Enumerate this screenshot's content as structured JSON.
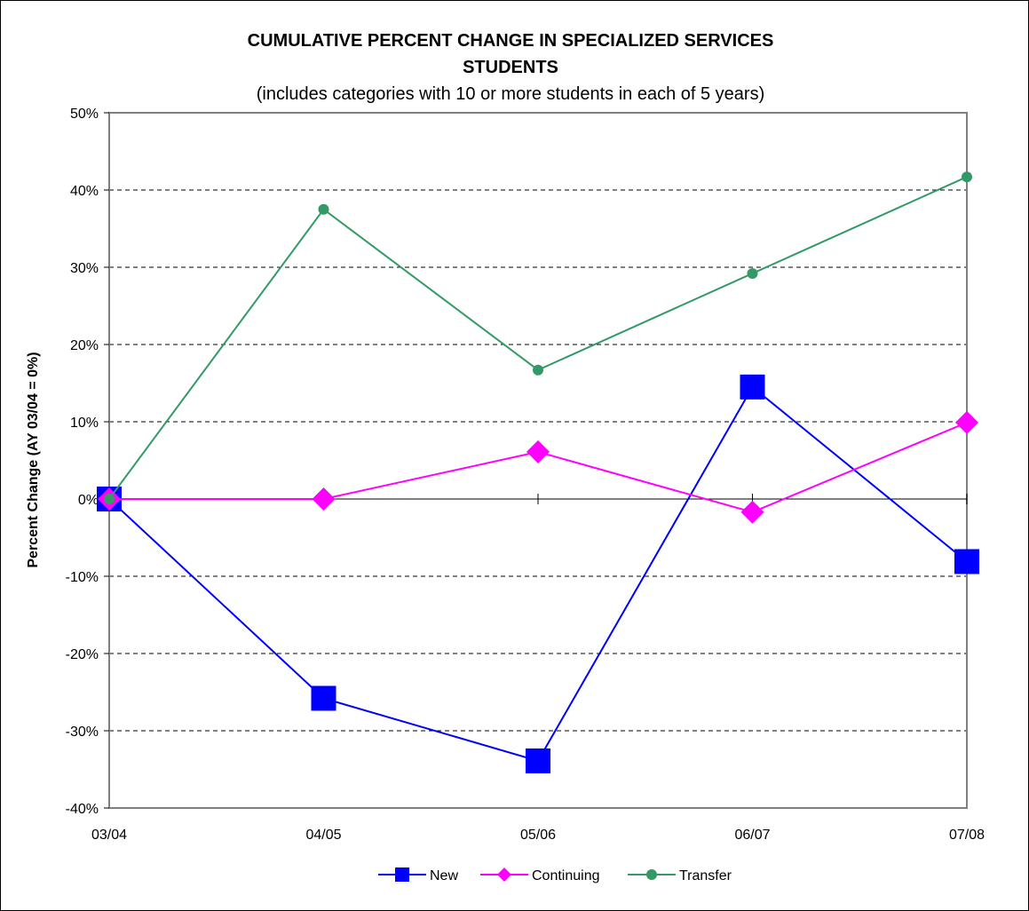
{
  "chart_data": {
    "type": "line",
    "title": "CUMULATIVE PERCENT CHANGE IN SPECIALIZED SERVICES",
    "title_line2": "STUDENTS",
    "subtitle": "(includes categories with 10 or more students in each of 5 years)",
    "ylabel": "Percent Change (AY 03/04 = 0%)",
    "xlabel": "",
    "categories": [
      "03/04",
      "04/05",
      "05/06",
      "06/07",
      "07/08"
    ],
    "ylim": [
      -40,
      50
    ],
    "yticks": [
      -40,
      -30,
      -20,
      -10,
      0,
      10,
      20,
      30,
      40,
      50
    ],
    "ytick_labels": [
      "-40%",
      "-30%",
      "-20%",
      "-10%",
      "0%",
      "10%",
      "20%",
      "30%",
      "40%",
      "50%"
    ],
    "grid": "horizontal dashed",
    "legend_position": "bottom",
    "series": [
      {
        "name": "New",
        "values": [
          0,
          -25.8,
          -33.9,
          14.5,
          -8.1
        ],
        "color": "#0000ff",
        "marker": "square"
      },
      {
        "name": "Continuing",
        "values": [
          0,
          0,
          6.1,
          -1.7,
          9.9
        ],
        "color": "#ff00ff",
        "marker": "diamond"
      },
      {
        "name": "Transfer",
        "values": [
          0,
          37.5,
          16.7,
          29.2,
          41.7
        ],
        "color": "#339966",
        "marker": "circle"
      }
    ]
  }
}
